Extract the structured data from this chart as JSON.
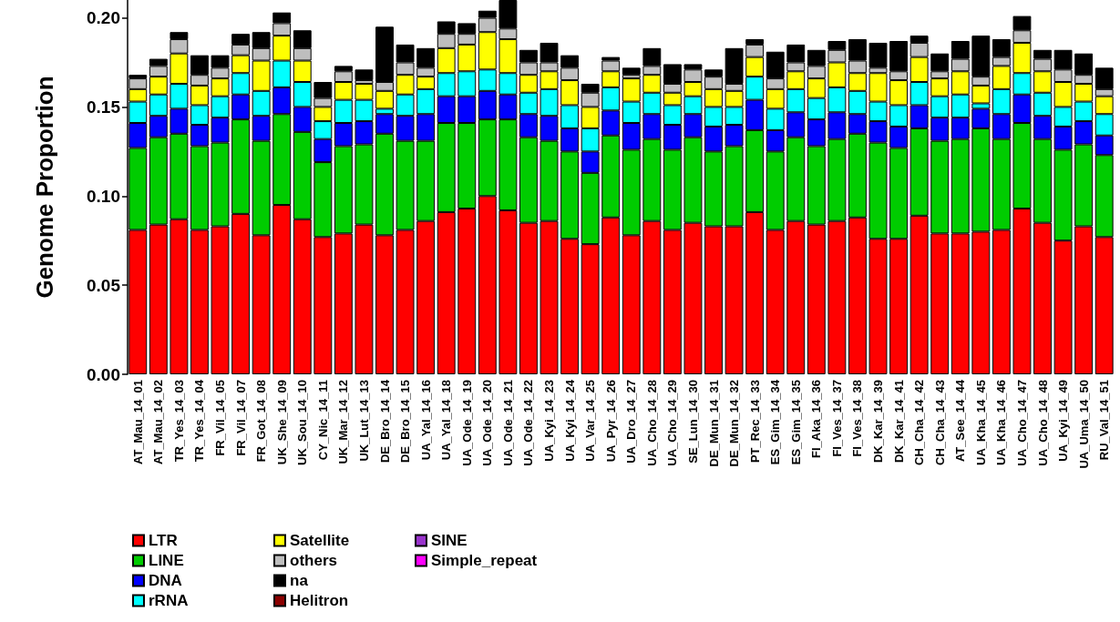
{
  "chart_data": {
    "type": "bar",
    "stacked": true,
    "ylabel": "Genome Proportion",
    "legend": "bottom",
    "grid": false,
    "categories": [
      "AT_Mau_14_01",
      "AT_Mau_14_02",
      "TR_Yes_14_03",
      "TR_Yes_14_04",
      "FR_Vil_14_05",
      "FR_Vil_14_07",
      "FR_Got_14_08",
      "UK_She_14_09",
      "UK_Sou_14_10",
      "CY_Nic_14_11",
      "UK_Mar_14_12",
      "UK_Lut_14_13",
      "DE_Bro_14_14",
      "DE_Bro_14_15",
      "UA_Yal_14_16",
      "UA_Yal_14_18",
      "UA_Ode_14_19",
      "UA_Ode_14_20",
      "UA_Ode_14_21",
      "UA_Ode_14_22",
      "UA_Kyi_14_23",
      "UA_Kyi_14_24",
      "UA_Var_14_25",
      "UA_Pyr_14_26",
      "UA_Dro_14_27",
      "UA_Cho_14_28",
      "UA_Cho_14_29",
      "SE_Lun_14_30",
      "DE_Mun_14_31",
      "DE_Mun_14_32",
      "PT_Rec_14_33",
      "ES_Gim_14_34",
      "ES_Gim_14_35",
      "FI_Aka_14_36",
      "FI_Ves_14_37",
      "FI_Ves_14_38",
      "DK_Kar_14_39",
      "DK_Kar_14_41",
      "CH_Cha_14_42",
      "CH_Cha_14_43",
      "AT_See_14_44",
      "UA_Kha_14_45",
      "UA_Kha_14_46",
      "UA_Cho_14_47",
      "UA_Cho_14_48",
      "UA_Kyi_14_49",
      "UA_Uma_14_50",
      "RU_Val_14_51"
    ],
    "ylim": [
      0,
      0.21
    ],
    "yticks": [
      {
        "value": 0,
        "label": "0.00"
      },
      {
        "value": 0.05,
        "label": "0.05"
      },
      {
        "value": 0.1,
        "label": "0.10"
      },
      {
        "value": 0.15,
        "label": "0.15"
      },
      {
        "value": 0.2,
        "label": "0.20"
      }
    ],
    "series": [
      {
        "name": "LTR",
        "color": "#ff0000",
        "values": [
          0.081,
          0.084,
          0.087,
          0.081,
          0.083,
          0.09,
          0.078,
          0.095,
          0.087,
          0.077,
          0.079,
          0.084,
          0.078,
          0.081,
          0.086,
          0.091,
          0.093,
          0.1,
          0.092,
          0.085,
          0.086,
          0.076,
          0.073,
          0.088,
          0.078,
          0.086,
          0.081,
          0.085,
          0.083,
          0.083,
          0.091,
          0.081,
          0.086,
          0.084,
          0.086,
          0.088,
          0.076,
          0.076,
          0.089,
          0.079,
          0.079,
          0.08,
          0.081,
          0.093,
          0.085,
          0.075,
          0.083,
          0.077
        ]
      },
      {
        "name": "LINE",
        "color": "#00cc00",
        "values": [
          0.046,
          0.049,
          0.048,
          0.047,
          0.047,
          0.053,
          0.053,
          0.051,
          0.049,
          0.042,
          0.049,
          0.045,
          0.057,
          0.05,
          0.045,
          0.05,
          0.048,
          0.043,
          0.051,
          0.048,
          0.045,
          0.049,
          0.04,
          0.046,
          0.048,
          0.046,
          0.045,
          0.048,
          0.042,
          0.045,
          0.046,
          0.044,
          0.047,
          0.044,
          0.046,
          0.047,
          0.054,
          0.051,
          0.049,
          0.052,
          0.053,
          0.058,
          0.051,
          0.048,
          0.047,
          0.051,
          0.046,
          0.046
        ]
      },
      {
        "name": "DNA",
        "color": "#0000ff",
        "values": [
          0.014,
          0.012,
          0.014,
          0.012,
          0.014,
          0.014,
          0.014,
          0.015,
          0.014,
          0.013,
          0.013,
          0.013,
          0.011,
          0.014,
          0.015,
          0.015,
          0.015,
          0.016,
          0.014,
          0.013,
          0.014,
          0.013,
          0.012,
          0.014,
          0.015,
          0.014,
          0.014,
          0.013,
          0.014,
          0.012,
          0.017,
          0.012,
          0.014,
          0.015,
          0.015,
          0.011,
          0.012,
          0.012,
          0.013,
          0.013,
          0.012,
          0.011,
          0.014,
          0.016,
          0.013,
          0.013,
          0.013,
          0.011
        ]
      },
      {
        "name": "rRNA",
        "color": "#00ffff",
        "values": [
          0.012,
          0.012,
          0.014,
          0.011,
          0.012,
          0.012,
          0.014,
          0.015,
          0.014,
          0.01,
          0.013,
          0.012,
          0.003,
          0.012,
          0.014,
          0.013,
          0.014,
          0.012,
          0.012,
          0.012,
          0.015,
          0.013,
          0.013,
          0.013,
          0.012,
          0.012,
          0.011,
          0.01,
          0.011,
          0.01,
          0.013,
          0.012,
          0.013,
          0.012,
          0.014,
          0.013,
          0.011,
          0.012,
          0.013,
          0.012,
          0.013,
          0.003,
          0.014,
          0.012,
          0.013,
          0.011,
          0.011,
          0.012
        ]
      },
      {
        "name": "Satellite",
        "color": "#ffff00",
        "values": [
          0.007,
          0.01,
          0.017,
          0.011,
          0.01,
          0.01,
          0.017,
          0.014,
          0.012,
          0.008,
          0.01,
          0.009,
          0.01,
          0.011,
          0.007,
          0.014,
          0.015,
          0.021,
          0.019,
          0.01,
          0.01,
          0.014,
          0.012,
          0.009,
          0.013,
          0.01,
          0.007,
          0.008,
          0.01,
          0.009,
          0.011,
          0.011,
          0.01,
          0.011,
          0.014,
          0.01,
          0.016,
          0.014,
          0.014,
          0.01,
          0.013,
          0.01,
          0.013,
          0.017,
          0.012,
          0.014,
          0.01,
          0.01
        ]
      },
      {
        "name": "others",
        "color": "#bebebe",
        "values": [
          0.006,
          0.006,
          0.008,
          0.006,
          0.006,
          0.006,
          0.007,
          0.007,
          0.007,
          0.005,
          0.006,
          0.002,
          0.005,
          0.007,
          0.005,
          0.008,
          0.006,
          0.008,
          0.006,
          0.007,
          0.005,
          0.007,
          0.008,
          0.006,
          0.002,
          0.005,
          0.005,
          0.007,
          0.007,
          0.004,
          0.007,
          0.006,
          0.005,
          0.007,
          0.007,
          0.007,
          0.003,
          0.005,
          0.008,
          0.004,
          0.007,
          0.005,
          0.005,
          0.007,
          0.007,
          0.007,
          0.005,
          0.004
        ]
      },
      {
        "name": "na",
        "color": "#000000",
        "values": [
          0.002,
          0.004,
          0.004,
          0.011,
          0.007,
          0.006,
          0.009,
          0.006,
          0.01,
          0.009,
          0.003,
          0.006,
          0.031,
          0.01,
          0.011,
          0.007,
          0.006,
          0.004,
          0.016,
          0.007,
          0.011,
          0.007,
          0.005,
          0.002,
          0.004,
          0.01,
          0.011,
          0.003,
          0.004,
          0.02,
          0.003,
          0.015,
          0.01,
          0.009,
          0.005,
          0.012,
          0.014,
          0.017,
          0.004,
          0.01,
          0.01,
          0.023,
          0.01,
          0.008,
          0.005,
          0.011,
          0.012,
          0.012
        ]
      },
      {
        "name": "Helitron",
        "color": "#8b0000",
        "values": [
          0,
          0,
          0,
          0,
          0,
          0,
          0,
          0,
          0,
          0,
          0,
          0,
          0,
          0,
          0,
          0,
          0,
          0,
          0,
          0,
          0,
          0,
          0,
          0,
          0,
          0,
          0,
          0,
          0,
          0,
          0,
          0,
          0,
          0,
          0,
          0,
          0,
          0,
          0,
          0,
          0,
          0,
          0,
          0,
          0,
          0,
          0,
          0
        ]
      },
      {
        "name": "SINE",
        "color": "#9932cc",
        "values": [
          0,
          0,
          0,
          0,
          0,
          0,
          0,
          0,
          0,
          0,
          0,
          0,
          0,
          0,
          0,
          0,
          0,
          0,
          0,
          0,
          0,
          0,
          0,
          0,
          0,
          0,
          0,
          0,
          0,
          0,
          0,
          0,
          0,
          0,
          0,
          0,
          0,
          0,
          0,
          0,
          0,
          0,
          0,
          0,
          0,
          0,
          0,
          0
        ]
      },
      {
        "name": "Simple_repeat",
        "color": "#ff00ff",
        "values": [
          0,
          0,
          0,
          0,
          0,
          0,
          0,
          0,
          0,
          0,
          0,
          0,
          0,
          0,
          0,
          0,
          0,
          0,
          0,
          0,
          0,
          0,
          0,
          0,
          0,
          0,
          0,
          0,
          0,
          0,
          0,
          0,
          0,
          0,
          0,
          0,
          0,
          0,
          0,
          0,
          0,
          0,
          0,
          0,
          0,
          0,
          0,
          0
        ]
      }
    ]
  }
}
